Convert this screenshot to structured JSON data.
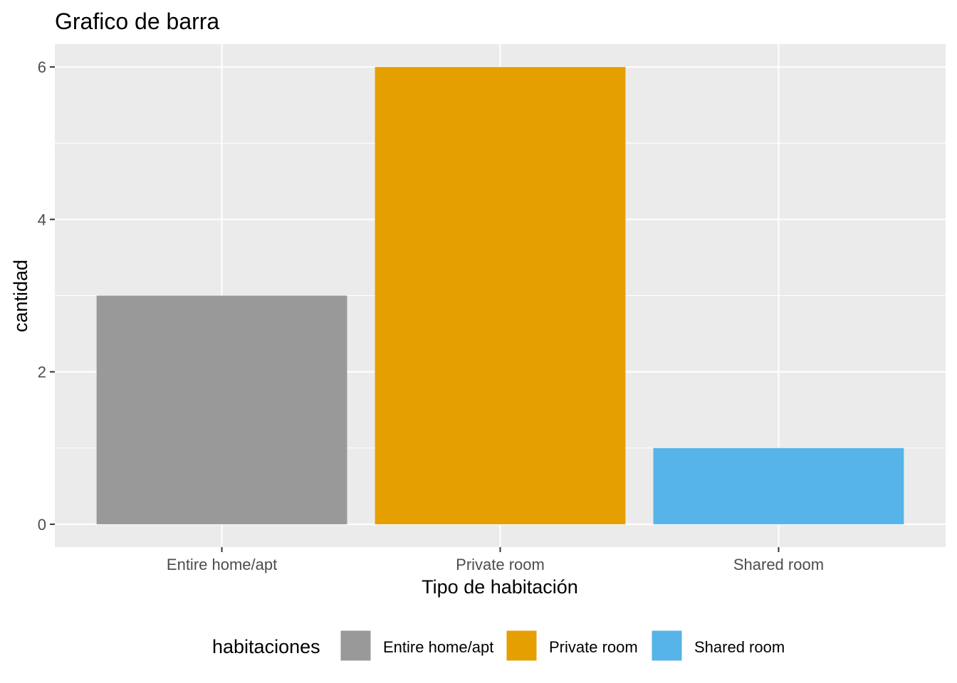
{
  "chart_data": {
    "type": "bar",
    "title": "Grafico de barra",
    "xlabel": "Tipo de habitación",
    "ylabel": "cantidad",
    "categories": [
      "Entire home/apt",
      "Private room",
      "Shared room"
    ],
    "values": [
      3,
      6,
      1
    ],
    "colors": [
      "#999999",
      "#E69F00",
      "#56B4E9"
    ],
    "ylim": [
      -0.3,
      6.3
    ],
    "yticks": [
      0,
      2,
      4,
      6
    ],
    "grid": true,
    "panel_background": "#EBEBEB",
    "legend": {
      "title": "habitaciones",
      "placement": "bottom",
      "items": [
        "Entire home/apt",
        "Private room",
        "Shared room"
      ]
    }
  }
}
